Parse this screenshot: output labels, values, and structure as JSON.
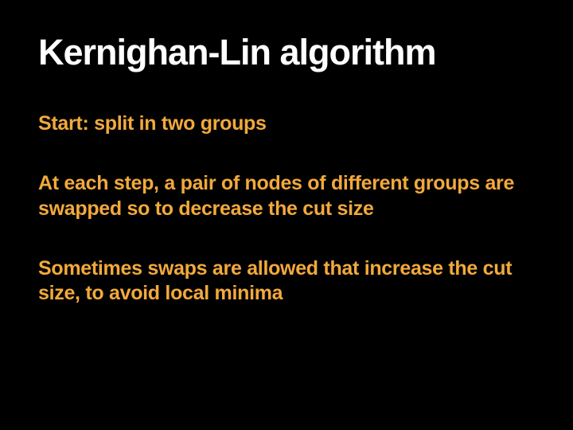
{
  "slide": {
    "title": "Kernighan-Lin algorithm",
    "paragraphs": [
      "Start: split in two groups",
      "At each step, a pair of nodes of different groups are swapped so to decrease the cut size",
      "Sometimes swaps are allowed that increase the cut size, to avoid local minima"
    ],
    "background_color": "#000000",
    "title_color": "#ffffff",
    "body_color": "#f2a93b",
    "title_fontsize": 45,
    "body_fontsize": 25
  }
}
